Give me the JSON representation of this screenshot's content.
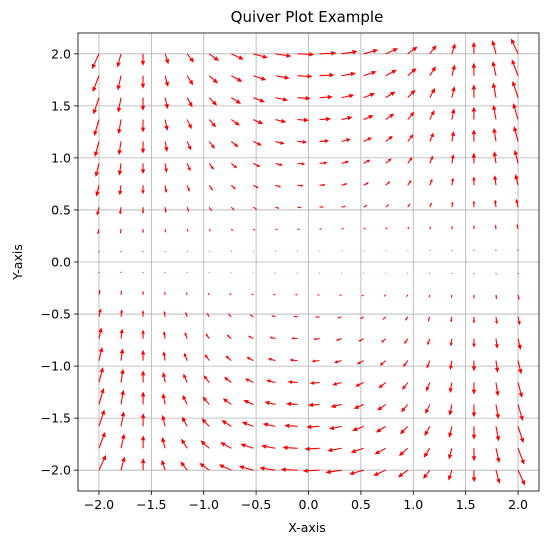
{
  "chart_data": {
    "type": "quiver",
    "title": "Quiver Plot Example",
    "xlabel": "X-axis",
    "ylabel": "Y-axis",
    "xlim": [
      -2.2,
      2.2
    ],
    "ylim": [
      -2.2,
      2.2
    ],
    "xticks": [
      -2.0,
      -1.5,
      -1.0,
      -0.5,
      0.0,
      0.5,
      1.0,
      1.5,
      2.0
    ],
    "yticks": [
      -2.0,
      -1.5,
      -1.0,
      -0.5,
      0.0,
      0.5,
      1.0,
      1.5,
      2.0
    ],
    "xtick_labels": [
      "−2.0",
      "−1.5",
      "−1.0",
      "−0.5",
      "0.0",
      "0.5",
      "1.0",
      "1.5",
      "2.0"
    ],
    "ytick_labels": [
      "−2.0",
      "−1.5",
      "−1.0",
      "−0.5",
      "0.0",
      "0.5",
      "1.0",
      "1.5",
      "2.0"
    ],
    "grid": true,
    "arrow_color": "#ff0000",
    "grid_color": "#b0b0b0",
    "field": {
      "u": "cos(x) * y",
      "v": "sin(y) * x"
    },
    "grid_points": {
      "x_range": [
        -2,
        2
      ],
      "y_range": [
        -2,
        2
      ],
      "count": 20
    }
  }
}
